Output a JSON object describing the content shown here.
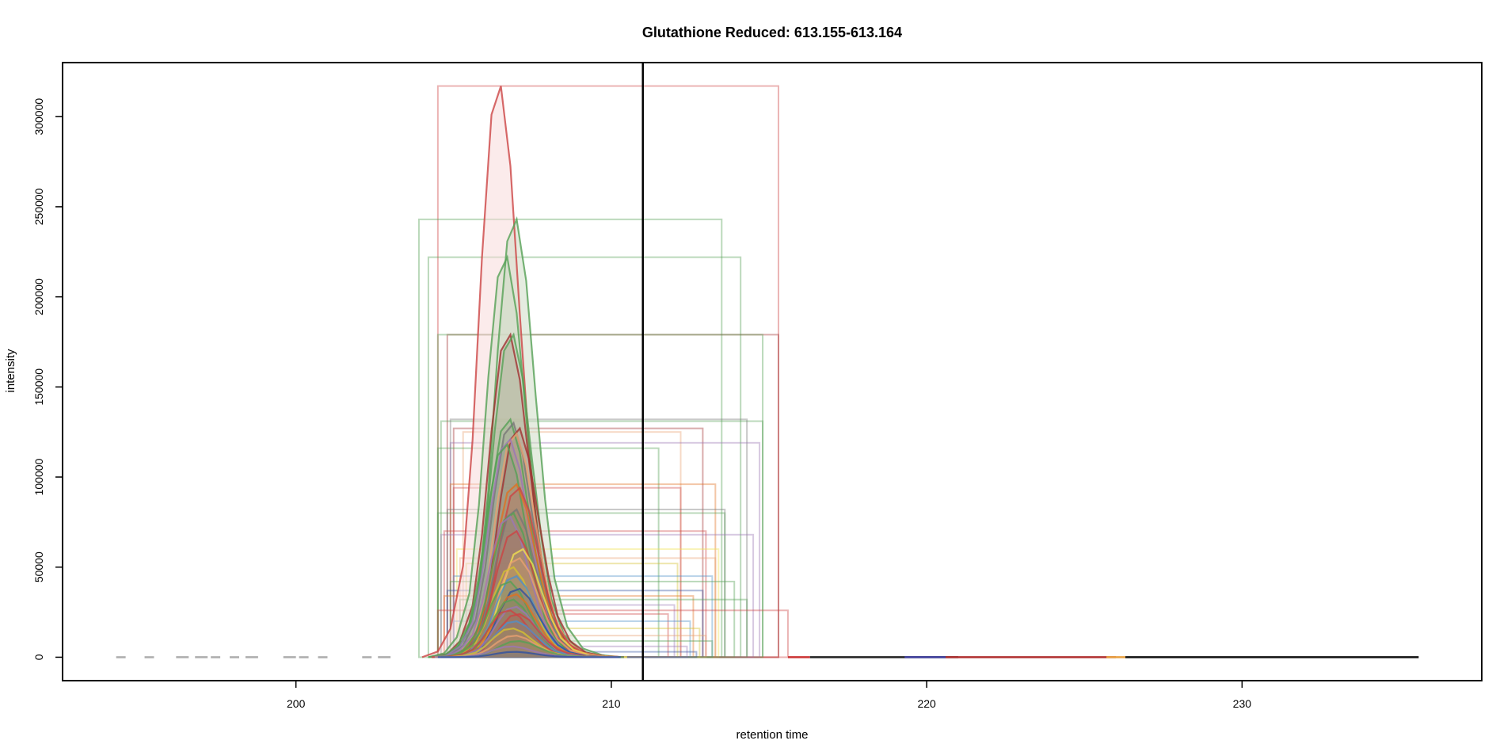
{
  "chart_data": {
    "type": "line",
    "title": "Glutathione Reduced: 613.155-613.164",
    "xlabel": "retention time",
    "ylabel": "intensity",
    "xlim": [
      192.6,
      237.6
    ],
    "ylim": [
      -13000,
      330000
    ],
    "x_ticks": [
      200,
      210,
      220,
      230
    ],
    "y_ticks": [
      0,
      50000,
      100000,
      150000,
      200000,
      250000,
      300000
    ],
    "x_tick_labels": [
      "200",
      "210",
      "220",
      "230"
    ],
    "y_tick_labels": [
      "0",
      "50000",
      "100000",
      "150000",
      "200000",
      "250000",
      "300000"
    ],
    "vline_x": 211.0,
    "grid": false,
    "legend": "none",
    "peak_profile": {
      "x": [
        204.4,
        204.9,
        205.3,
        205.7,
        206.0,
        206.3,
        206.6,
        206.9,
        207.2,
        207.5,
        207.8,
        208.1,
        208.5,
        209.0,
        209.6,
        210.2
      ],
      "y_fraction": [
        0,
        0.01,
        0.05,
        0.16,
        0.38,
        0.7,
        0.95,
        1.0,
        0.86,
        0.6,
        0.36,
        0.18,
        0.07,
        0.02,
        0.005,
        0
      ]
    },
    "series": [
      {
        "peak_rt": 206.5,
        "peak": 317000,
        "color": "#cc4444",
        "box": [
          204.5,
          215.3,
          317000
        ],
        "fill": "#f8dada"
      },
      {
        "peak_rt": 207.0,
        "peak": 243000,
        "color": "#55a055",
        "box": [
          203.9,
          213.5,
          243000
        ],
        "fill": "#cfdcc6"
      },
      {
        "peak_rt": 206.7,
        "peak": 222000,
        "color": "#55a055",
        "box": [
          204.2,
          214.1,
          222000
        ],
        "fill": "#cfdcc6"
      },
      {
        "peak_rt": 206.8,
        "peak": 179000,
        "color": "#a03030",
        "box": [
          204.8,
          215.3,
          179000
        ]
      },
      {
        "peak_rt": 206.9,
        "peak": 179000,
        "color": "#55a055",
        "box": [
          204.5,
          214.8,
          179000
        ]
      },
      {
        "peak_rt": 206.8,
        "peak": 132000,
        "color": "#55a055",
        "box": [
          204.6,
          214.8,
          131000
        ]
      },
      {
        "peak_rt": 206.9,
        "peak": 130000,
        "color": "#777777",
        "box": [
          204.9,
          214.3,
          132000
        ]
      },
      {
        "peak_rt": 207.1,
        "peak": 127000,
        "color": "#a03030",
        "box": [
          205.0,
          212.9,
          127000
        ]
      },
      {
        "peak_rt": 207.0,
        "peak": 124000,
        "color": "#e8a070",
        "box": [
          205.3,
          212.2,
          125000
        ]
      },
      {
        "peak_rt": 206.8,
        "peak": 121000,
        "color": "#9b77b5",
        "box": [
          204.9,
          214.7,
          119000
        ]
      },
      {
        "peak_rt": 206.7,
        "peak": 118000,
        "color": "#55a055",
        "box": [
          204.5,
          211.5,
          116000
        ]
      },
      {
        "peak_rt": 207.0,
        "peak": 96000,
        "color": "#e07020",
        "box": [
          204.9,
          213.3,
          96000
        ]
      },
      {
        "peak_rt": 207.1,
        "peak": 94000,
        "color": "#cc4444",
        "box": [
          205.0,
          212.2,
          94000
        ]
      },
      {
        "peak_rt": 207.0,
        "peak": 82000,
        "color": "#777777",
        "box": [
          204.8,
          213.6,
          82000
        ]
      },
      {
        "peak_rt": 206.9,
        "peak": 80000,
        "color": "#55a055",
        "box": [
          204.5,
          213.6,
          80000
        ]
      },
      {
        "peak_rt": 206.8,
        "peak": 78000,
        "color": "#9b77b5",
        "box": [
          204.6,
          214.5,
          68000
        ]
      },
      {
        "peak_rt": 207.0,
        "peak": 70000,
        "color": "#cc4444",
        "box": [
          204.7,
          213.0,
          70000
        ]
      },
      {
        "peak_rt": 207.2,
        "peak": 60000,
        "color": "#f0e050",
        "box": [
          205.1,
          213.4,
          60000
        ]
      },
      {
        "peak_rt": 207.1,
        "peak": 55000,
        "color": "#e8a070",
        "box": [
          205.2,
          213.3,
          55000
        ]
      },
      {
        "peak_rt": 206.9,
        "peak": 50000,
        "color": "#d4c030",
        "box": [
          205.4,
          212.1,
          52000
        ]
      },
      {
        "peak_rt": 207.0,
        "peak": 45000,
        "color": "#5090c8",
        "box": [
          205.0,
          213.2,
          45000
        ]
      },
      {
        "peak_rt": 206.8,
        "peak": 42000,
        "color": "#55a055",
        "box": [
          204.9,
          213.9,
          42000
        ]
      },
      {
        "peak_rt": 207.1,
        "peak": 38000,
        "color": "#3050a0",
        "box": [
          204.8,
          212.9,
          37000
        ]
      },
      {
        "peak_rt": 207.0,
        "peak": 35000,
        "color": "#e07020",
        "box": [
          204.7,
          212.6,
          34000
        ]
      },
      {
        "peak_rt": 206.9,
        "peak": 32000,
        "color": "#55a055",
        "box": [
          205.2,
          214.3,
          32000
        ]
      },
      {
        "peak_rt": 207.0,
        "peak": 28000,
        "color": "#9b77b5",
        "box": [
          205.4,
          212.0,
          29000
        ]
      },
      {
        "peak_rt": 206.8,
        "peak": 26000,
        "color": "#cc4444",
        "box": [
          204.5,
          215.6,
          26000
        ]
      },
      {
        "peak_rt": 207.1,
        "peak": 24000,
        "color": "#cc4444",
        "box": [
          205.5,
          211.8,
          24000
        ]
      },
      {
        "peak_rt": 207.0,
        "peak": 20000,
        "color": "#5090c8",
        "box": [
          205.0,
          212.5,
          20000
        ]
      },
      {
        "peak_rt": 206.9,
        "peak": 16000,
        "color": "#d4c030",
        "box": [
          205.3,
          212.8,
          16000
        ]
      },
      {
        "peak_rt": 207.0,
        "peak": 12000,
        "color": "#e8a070",
        "box": [
          205.1,
          213.0,
          12000
        ]
      },
      {
        "peak_rt": 207.1,
        "peak": 9000,
        "color": "#55a055",
        "box": [
          205.2,
          213.2,
          9000
        ]
      },
      {
        "peak_rt": 206.9,
        "peak": 6000,
        "color": "#9b77b5",
        "box": [
          205.0,
          212.4,
          6000
        ]
      },
      {
        "peak_rt": 207.0,
        "peak": 3000,
        "color": "#3050a0",
        "box": [
          205.4,
          212.7,
          3000
        ]
      }
    ],
    "baseline_segments": [
      [
        194.3,
        194.6
      ],
      [
        195.2,
        195.5
      ],
      [
        196.2,
        196.6
      ],
      [
        196.8,
        197.2
      ],
      [
        197.3,
        197.6
      ],
      [
        197.9,
        198.2
      ],
      [
        198.4,
        198.8
      ],
      [
        199.6,
        200.0
      ],
      [
        200.1,
        200.4
      ],
      [
        200.7,
        201.0
      ],
      [
        202.1,
        202.4
      ],
      [
        202.6,
        203.0
      ]
    ],
    "tail_segments": [
      {
        "x": [
          215.6,
          216.3
        ],
        "color": "#cc3333"
      },
      {
        "x": [
          216.3,
          221.0
        ],
        "color": "#222222"
      },
      {
        "x": [
          219.3,
          220.6
        ],
        "color": "#4040a0"
      },
      {
        "x": [
          220.6,
          226.0
        ],
        "color": "#b03030"
      },
      {
        "x": [
          225.7,
          226.3
        ],
        "color": "#e8a040"
      },
      {
        "x": [
          226.3,
          235.6
        ],
        "color": "#111111"
      }
    ]
  }
}
